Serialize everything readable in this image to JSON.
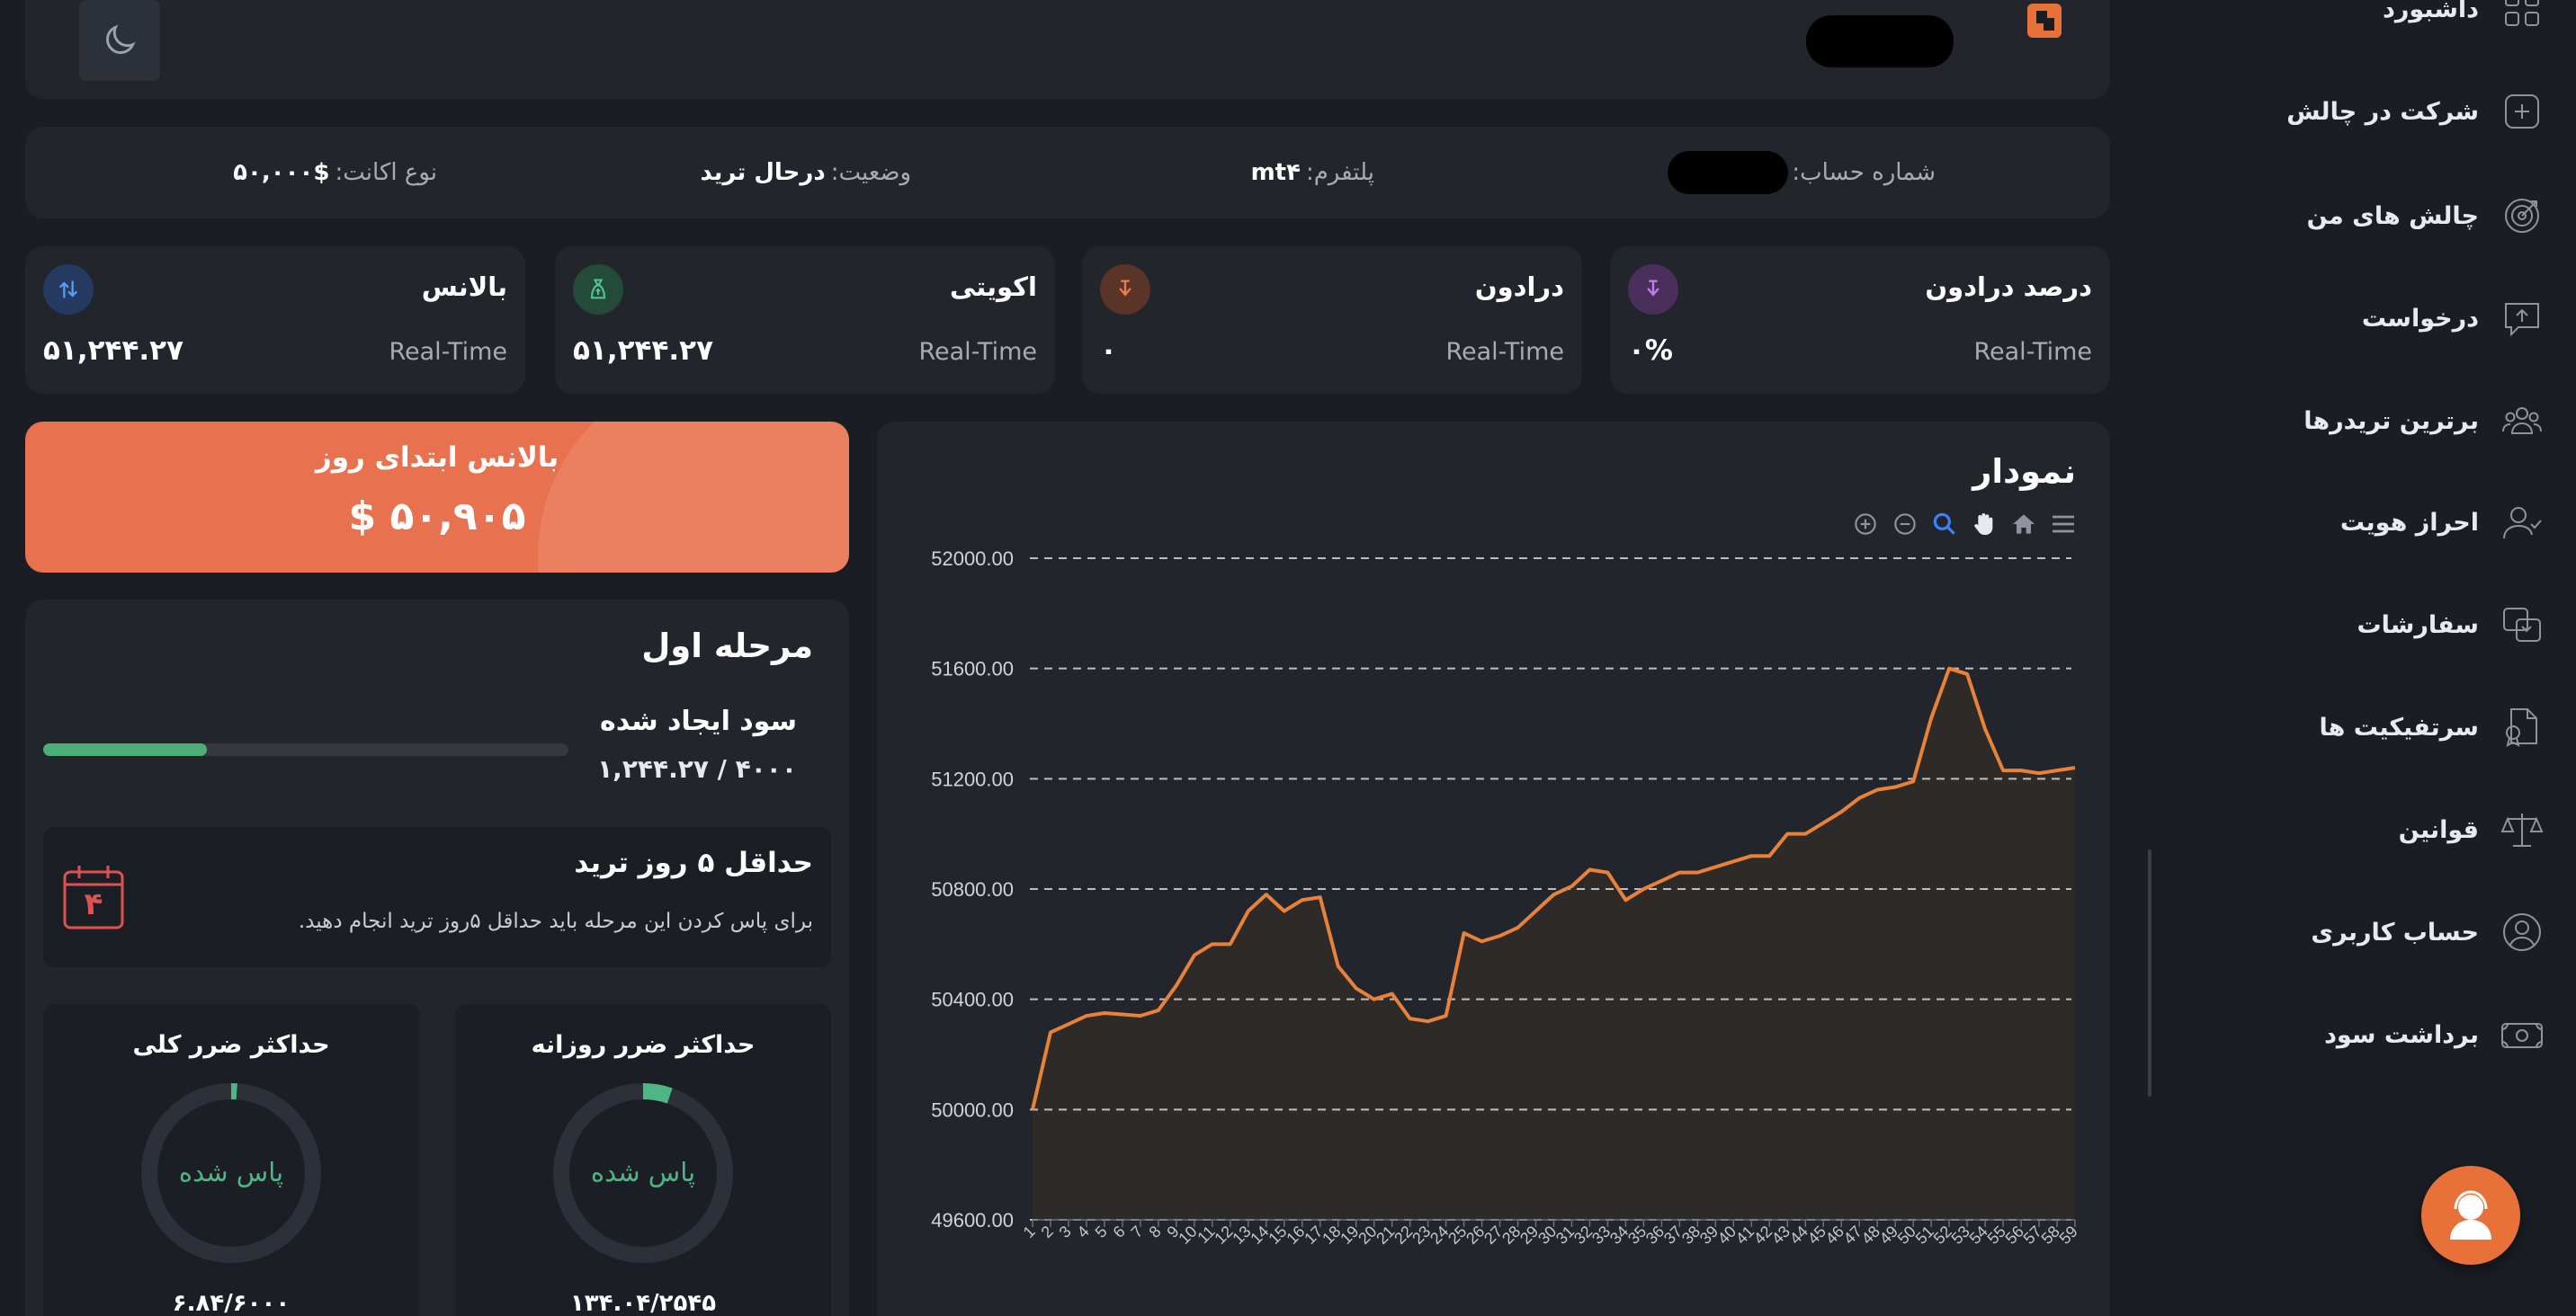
{
  "topbar": {
    "theme_toggle": "moon-icon"
  },
  "info": {
    "account_number_label": "شماره حساب:",
    "platform_label": "پلتفرم:",
    "platform_value": "mt۴",
    "status_label": "وضعیت:",
    "status_value": "درحال ترید",
    "account_type_label": "نوع اکانت:",
    "account_type_value": "۵۰,۰۰۰$"
  },
  "stats": [
    {
      "title": "درصد درادون",
      "sub": "Real-Time",
      "value": "۰%",
      "icon": "arrow-down-icon",
      "color": "#a45bd0"
    },
    {
      "title": "درادون",
      "sub": "Real-Time",
      "value": "۰",
      "icon": "arrow-down-icon",
      "color": "#e8713a"
    },
    {
      "title": "اکویتی",
      "sub": "Real-Time",
      "value": "۵۱,۲۴۴.۲۷",
      "icon": "money-bag-icon",
      "color": "#3fa97a"
    },
    {
      "title": "بالانس",
      "sub": "Real-Time",
      "value": "۵۱,۲۴۴.۲۷",
      "icon": "arrows-updown-icon",
      "color": "#3b82f6"
    }
  ],
  "day_balance": {
    "title": "بالانس ابتدای روز",
    "value": "$ ۵۰,۹۰۵"
  },
  "stage": {
    "title": "مرحله اول",
    "profit_title": "سود ایجاد شده",
    "profit_value": "۱,۲۴۴.۲۷ / ۴۰۰۰",
    "profit_fraction": 0.311,
    "min_days_title": "حداقل ۵ روز ترید",
    "min_days_desc": "برای پاس کردن این مرحله باید حداقل ۵روز ترید انجام دهید.",
    "calendar_day": "۴",
    "daily_loss": {
      "title": "حداکثر ضرر روزانه",
      "status": "پاس شده",
      "value": "۱۳۴.۰۴/۲۵۴۵",
      "fraction": 0.053
    },
    "total_loss": {
      "title": "حداکثر ضرر کلی",
      "status": "پاس شده",
      "value": "۶.۸۴/۶۰۰۰",
      "fraction": 0.011
    }
  },
  "chart": {
    "title": "نمودار"
  },
  "chart_data": {
    "type": "area",
    "ylim": [
      49600,
      52000
    ],
    "yticks": [
      "52000.00",
      "51600.00",
      "51200.00",
      "50800.00",
      "50400.00",
      "50000.00",
      "49600.00"
    ],
    "x": [
      1,
      2,
      3,
      4,
      5,
      6,
      7,
      8,
      9,
      10,
      11,
      12,
      13,
      14,
      15,
      16,
      17,
      18,
      19,
      20,
      21,
      22,
      23,
      24,
      25,
      26,
      27,
      28,
      29,
      30,
      31,
      32,
      33,
      34,
      35,
      36,
      37,
      38,
      39,
      40,
      41,
      42,
      43,
      44,
      45,
      46,
      47,
      48,
      49,
      50,
      51,
      52,
      53,
      54,
      55,
      56,
      57,
      58,
      59
    ],
    "values": [
      50000,
      50280,
      50310,
      50340,
      50350,
      50345,
      50340,
      50360,
      50450,
      50560,
      50600,
      50600,
      50720,
      50780,
      50720,
      50760,
      50770,
      50520,
      50440,
      50400,
      50420,
      50330,
      50320,
      50340,
      50640,
      50610,
      50630,
      50660,
      50720,
      50780,
      50810,
      50870,
      50860,
      50760,
      50800,
      50830,
      50860,
      50860,
      50880,
      50900,
      50920,
      50920,
      51000,
      51000,
      51040,
      51080,
      51130,
      51160,
      51170,
      51190,
      51420,
      51600,
      51580,
      51380,
      51230,
      51230,
      51220,
      51230,
      51240
    ],
    "grid": true,
    "line_color": "#e8823a",
    "fill_color": "#2e2a28"
  },
  "nav": [
    {
      "label": "داشبورد",
      "icon": "grid-icon"
    },
    {
      "label": "شرکت در چالش",
      "icon": "plus-square-icon"
    },
    {
      "label": "چالش های من",
      "icon": "target-icon"
    },
    {
      "label": "درخواست",
      "icon": "upload-message-icon"
    },
    {
      "label": "برترین تریدرها",
      "icon": "users-icon"
    },
    {
      "label": "احراز هویت",
      "icon": "user-check-icon"
    },
    {
      "label": "سفارشات",
      "icon": "orders-icon"
    },
    {
      "label": "سرتفیکیت ها",
      "icon": "certificate-icon"
    },
    {
      "label": "قوانین",
      "icon": "scale-icon"
    },
    {
      "label": "حساب کاربری",
      "icon": "user-circle-icon"
    },
    {
      "label": "برداشت سود",
      "icon": "money-icon"
    }
  ],
  "support": {
    "icon": "support-agent-icon"
  }
}
